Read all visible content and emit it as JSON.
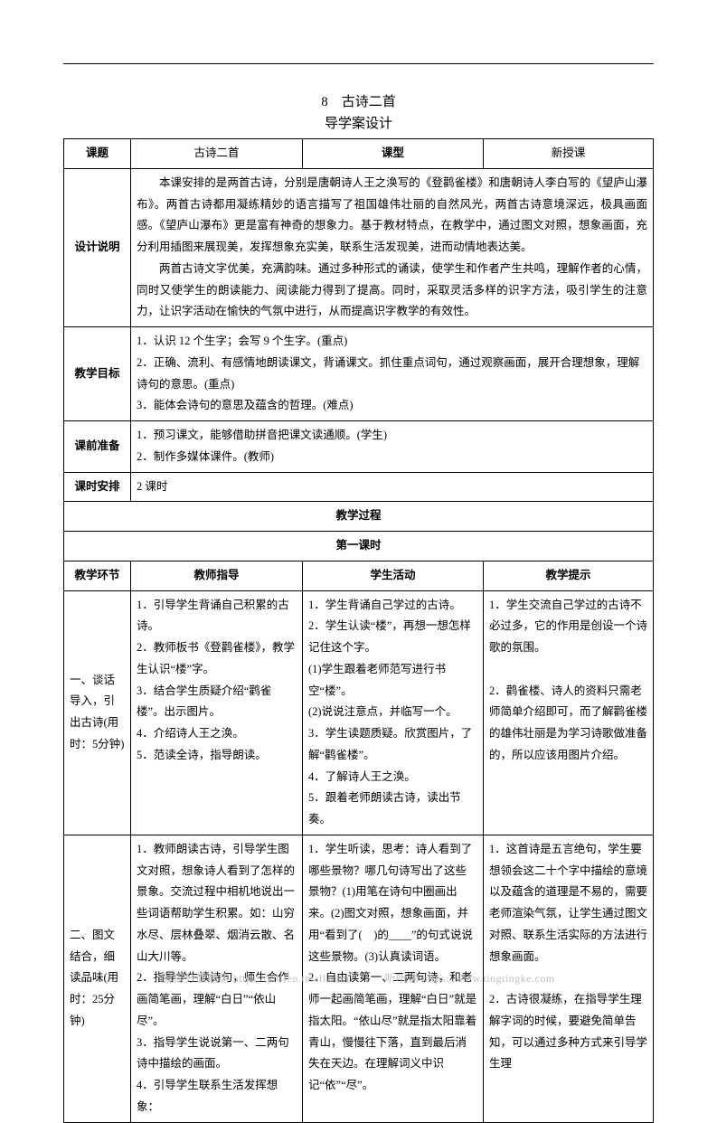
{
  "title_line1": "8　古诗二首",
  "title_line2": "导学案设计",
  "header_row": {
    "c1": "课题",
    "c2": "古诗二首",
    "c3": "课型",
    "c4": "新授课"
  },
  "rows": {
    "design": {
      "label": "设计说明",
      "p1": "本课安排的是两首古诗，分别是唐朝诗人王之涣写的《登鹳雀楼》和唐朝诗人李白写的《望庐山瀑布》。两首古诗都用凝练精妙的语言描写了祖国雄伟壮丽的自然风光，两首古诗意境深远，极具画面感。《望庐山瀑布》更是富有神奇的想象力。基于教材特点，在教学中，通过图文对照，想象画面，充分利用插图来展现美，发挥想象充实美，联系生活发现美，进而动情地表达美。",
      "p2": "两首古诗文字优美，充满韵味。通过多种形式的诵读，使学生和作者产生共鸣，理解作者的心情，同时又使学生的朗读能力、阅读能力得到了提高。同时，采取灵活多样的识字方法，吸引学生的注意力，让识字活动在愉快的气氛中进行，从而提高识字教学的有效性。"
    },
    "goals": {
      "label": "教学目标",
      "l1": "1．认识 12 个生字；会写 9 个生字。(重点)",
      "l2": "2．正确、流利、有感情地朗读课文，背诵课文。抓住重点词句，通过观察画面，展开合理想象，理解诗句的意思。(重点)",
      "l3": "3．能体会诗句的意思及蕴含的哲理。(难点)"
    },
    "prep": {
      "label": "课前准备",
      "l1": "1．预习课文，能够借助拼音把课文读通顺。(学生)",
      "l2": "2．制作多媒体课件。(教师)"
    },
    "schedule": {
      "label": "课时安排",
      "value": "2 课时"
    }
  },
  "process_header": "教学过程",
  "period_header": "第一课时",
  "proc_cols": {
    "c1": "教学环节",
    "c2": "教师指导",
    "c3": "学生活动",
    "c4": "教学提示"
  },
  "stage1": {
    "label": "一、谈话导入，引出古诗(用时：5分钟)",
    "teacher": "1．引导学生背诵自己积累的古诗。\n2．教师板书《登鹳雀楼》，教学生认识“楼”字。\n3．结合学生质疑介绍“鹳雀楼”。出示图片。\n4．介绍诗人王之涣。\n5．范读全诗，指导朗读。",
    "student": "1．学生背诵自己学过的古诗。\n2．学生认读“楼”，再想一想怎样记住这个字。\n(1)学生跟着老师范写进行书空“楼”。\n(2)说说注意点，并临写一个。\n3．学生读题质疑。欣赏图片，了解“鹳雀楼”。\n4．了解诗人王之涣。\n5．跟着老师朗读古诗，读出节奏。",
    "tip": "1．学生交流自己学过的古诗不必过多，它的作用是创设一个诗歌的氛围。\n\n2．鹳雀楼、诗人的资料只需老师简单介绍即可，而了解鹳雀楼的雄伟壮丽是为学习诗歌做准备的，所以应该用图片介绍。"
  },
  "stage2": {
    "label": "二、图文结合，细读品味(用时：25分钟)",
    "teacher": "1．教师朗读古诗，引导学生图文对照，想象诗人看到了怎样的景象。交流过程中相机地说出一些词语帮助学生积累。如：山穷水尽、层林叠翠、烟消云散、名山大川等。\n2．指导学生读诗句，师生合作画简笔画，理解“白日”“依山尽”。\n3．指导学生说说第一、二两句诗中描绘的画面。\n4．引导学生联系生活发挥想象：",
    "student": "1．学生听读，思考：诗人看到了哪些景物？哪几句诗写出了这些景物？(1)用笔在诗句中圈画出来。(2)图文对照，想象画面，并用“看到了(　)的____”的句式说说这些景物。(3)认真读词语。\n2．自由读第一、二两句诗，和老师一起画简笔画，理解“白日”就是指太阳。“依山尽”就是指太阳靠着青山，慢慢往下落，直到最后消失在天边。在理解词义中识记“依”“尽”。",
    "tip": "1．这首诗是五言绝句，学生要想领会这二十个字中描绘的意境以及蕴含的道理是不易的，需要老师渲染气氛，让学生通过图文对照、联系生活实际的方法进行想象画面。\n\n2．古诗很凝练，在指导学生理解字词的时候，要避免简单告知，可以通过多种方式来引导学生理"
  },
  "footer": {
    "left": "易提分旗舰店 https://yitifen.tmall.com",
    "right": "听听课 https://www.tingtingke.com"
  },
  "colors": {
    "text": "#000000",
    "border": "#000000",
    "footer": "#bfbfbf",
    "background": "#ffffff"
  }
}
